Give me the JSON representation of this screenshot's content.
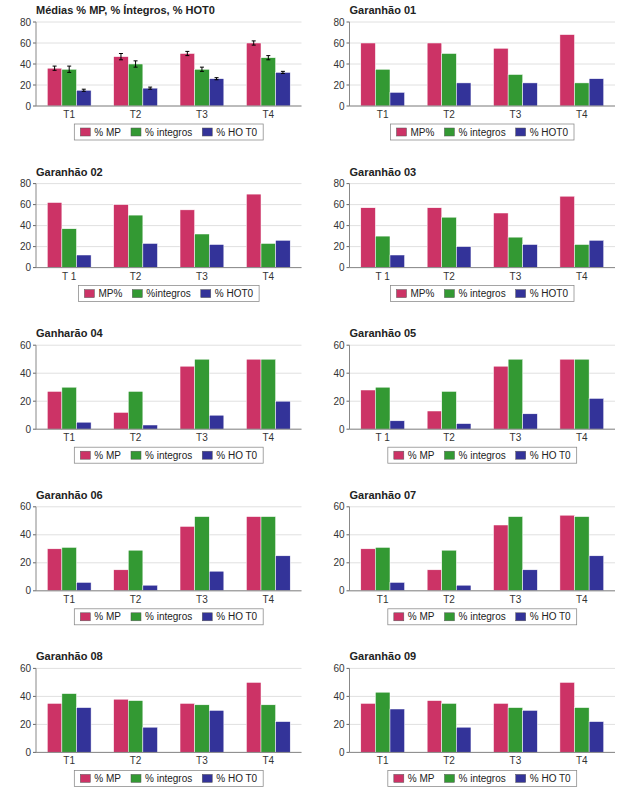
{
  "chart_data": [
    {
      "type": "bar",
      "title": "Médias % MP, % Íntegros, % HOT0",
      "categories": [
        "T1",
        "T2",
        "T3",
        "T4"
      ],
      "series": [
        {
          "name": "% MP",
          "color": "#cc3366",
          "values": [
            36,
            47,
            50,
            60
          ],
          "errors": [
            2,
            3,
            2,
            2
          ]
        },
        {
          "name": "% integros",
          "color": "#339933",
          "values": [
            35,
            40,
            35,
            46
          ],
          "errors": [
            3,
            3,
            2,
            2
          ]
        },
        {
          "name": "% HO T0",
          "color": "#333399",
          "values": [
            15,
            17,
            26,
            32
          ],
          "errors": [
            1,
            1,
            1,
            1
          ]
        }
      ],
      "ylim": [
        0,
        80
      ],
      "yticks": [
        0,
        20,
        40,
        60,
        80
      ],
      "grid": true,
      "legend": "bottom"
    },
    {
      "type": "bar",
      "title": "Garanhão 01",
      "categories": [
        "T1",
        "T2",
        "T3",
        "T4"
      ],
      "series": [
        {
          "name": "MP%",
          "color": "#cc3366",
          "values": [
            60,
            60,
            55,
            68
          ]
        },
        {
          "name": "% integros",
          "color": "#339933",
          "values": [
            35,
            50,
            30,
            22
          ]
        },
        {
          "name": "% HOT0",
          "color": "#333399",
          "values": [
            13,
            22,
            22,
            26
          ]
        }
      ],
      "ylim": [
        0,
        80
      ],
      "yticks": [
        0,
        20,
        40,
        60,
        80
      ],
      "grid": true,
      "legend": "bottom"
    },
    {
      "type": "bar",
      "title": "Garanhão 02",
      "categories": [
        "T 1",
        "T2",
        "T3",
        "T4"
      ],
      "series": [
        {
          "name": "MP%",
          "color": "#cc3366",
          "values": [
            62,
            60,
            55,
            70
          ]
        },
        {
          "name": "%integros",
          "color": "#339933",
          "values": [
            37,
            50,
            32,
            23
          ]
        },
        {
          "name": "% HOT0",
          "color": "#333399",
          "values": [
            12,
            23,
            22,
            26
          ]
        }
      ],
      "ylim": [
        0,
        80
      ],
      "yticks": [
        0,
        20,
        40,
        60,
        80
      ],
      "grid": true,
      "legend": "bottom"
    },
    {
      "type": "bar",
      "title": "Garanhão 03",
      "categories": [
        "T 1",
        "T2",
        "T3",
        "T4"
      ],
      "series": [
        {
          "name": "MP%",
          "color": "#cc3366",
          "values": [
            57,
            57,
            52,
            68
          ]
        },
        {
          "name": "% integros",
          "color": "#339933",
          "values": [
            30,
            48,
            29,
            22
          ]
        },
        {
          "name": "% HOT0",
          "color": "#333399",
          "values": [
            12,
            20,
            22,
            26
          ]
        }
      ],
      "ylim": [
        0,
        80
      ],
      "yticks": [
        0,
        20,
        40,
        60,
        80
      ],
      "grid": true,
      "legend": "bottom"
    },
    {
      "type": "bar",
      "title": "Ganharão 04",
      "categories": [
        "T1",
        "T2",
        "T3",
        "T4"
      ],
      "series": [
        {
          "name": "% MP",
          "color": "#cc3366",
          "values": [
            27,
            12,
            45,
            50
          ]
        },
        {
          "name": "% integros",
          "color": "#339933",
          "values": [
            30,
            27,
            50,
            50
          ]
        },
        {
          "name": "% HO T0",
          "color": "#333399",
          "values": [
            5,
            3,
            10,
            20
          ]
        }
      ],
      "ylim": [
        0,
        60
      ],
      "yticks": [
        0,
        20,
        40,
        60
      ],
      "grid": true,
      "legend": "bottom"
    },
    {
      "type": "bar",
      "title": "Garanhão 05",
      "categories": [
        "T 1",
        "T2",
        "T3",
        "T4"
      ],
      "series": [
        {
          "name": "% MP",
          "color": "#cc3366",
          "values": [
            28,
            13,
            45,
            50
          ]
        },
        {
          "name": "% integros",
          "color": "#339933",
          "values": [
            30,
            27,
            50,
            50
          ]
        },
        {
          "name": "% HO T0",
          "color": "#333399",
          "values": [
            6,
            4,
            11,
            22
          ]
        }
      ],
      "ylim": [
        0,
        60
      ],
      "yticks": [
        0,
        20,
        40,
        60
      ],
      "grid": true,
      "legend": "bottom"
    },
    {
      "type": "bar",
      "title": "Garanhão 06",
      "categories": [
        "T1",
        "T2",
        "T3",
        "T4"
      ],
      "series": [
        {
          "name": "% MP",
          "color": "#cc3366",
          "values": [
            30,
            15,
            46,
            53
          ]
        },
        {
          "name": "% integros",
          "color": "#339933",
          "values": [
            31,
            29,
            53,
            53
          ]
        },
        {
          "name": "% HO T0",
          "color": "#333399",
          "values": [
            6,
            4,
            14,
            25
          ]
        }
      ],
      "ylim": [
        0,
        60
      ],
      "yticks": [
        0,
        20,
        40,
        60
      ],
      "grid": true,
      "legend": "bottom"
    },
    {
      "type": "bar",
      "title": "Garanhão 07",
      "categories": [
        "T1",
        "T2",
        "T3",
        "T4"
      ],
      "series": [
        {
          "name": "% MP",
          "color": "#cc3366",
          "values": [
            30,
            15,
            47,
            54
          ]
        },
        {
          "name": "% integros",
          "color": "#339933",
          "values": [
            31,
            29,
            53,
            53
          ]
        },
        {
          "name": "% HO T0",
          "color": "#333399",
          "values": [
            6,
            4,
            15,
            25
          ]
        }
      ],
      "ylim": [
        0,
        60
      ],
      "yticks": [
        0,
        20,
        40,
        60
      ],
      "grid": true,
      "legend": "bottom"
    },
    {
      "type": "bar",
      "title": "Garanhão 08",
      "categories": [
        "T1",
        "T2",
        "T3",
        "T4"
      ],
      "series": [
        {
          "name": "% MP",
          "color": "#cc3366",
          "values": [
            35,
            38,
            35,
            50
          ]
        },
        {
          "name": "% integros",
          "color": "#339933",
          "values": [
            42,
            37,
            34,
            34
          ]
        },
        {
          "name": "% HO T0",
          "color": "#333399",
          "values": [
            32,
            18,
            30,
            22
          ]
        }
      ],
      "ylim": [
        0,
        60
      ],
      "yticks": [
        0,
        20,
        40,
        60
      ],
      "grid": true,
      "legend": "bottom"
    },
    {
      "type": "bar",
      "title": "Garanhão 09",
      "categories": [
        "T1",
        "T2",
        "T3",
        "T4"
      ],
      "series": [
        {
          "name": "% MP",
          "color": "#cc3366",
          "values": [
            35,
            37,
            35,
            50
          ]
        },
        {
          "name": "% integros",
          "color": "#339933",
          "values": [
            43,
            35,
            32,
            32
          ]
        },
        {
          "name": "% HO T0",
          "color": "#333399",
          "values": [
            31,
            18,
            30,
            22
          ]
        }
      ],
      "ylim": [
        0,
        60
      ],
      "yticks": [
        0,
        20,
        40,
        60
      ],
      "grid": true,
      "legend": "bottom"
    }
  ]
}
